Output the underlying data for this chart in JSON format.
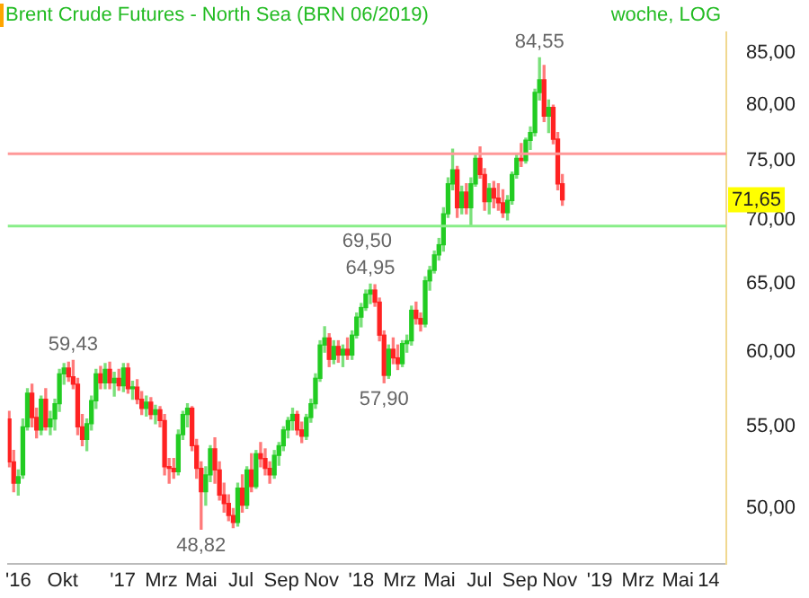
{
  "chart_data": {
    "type": "candlestick",
    "title": "Brent Crude Futures - North Sea (BRN 06/2019)",
    "subtitle": "woche, LOG",
    "log": true,
    "ylim": [
      46.9,
      87.1
    ],
    "yticks": [
      {
        "value": 50,
        "label": "50,00"
      },
      {
        "value": 55,
        "label": "55,00"
      },
      {
        "value": 60,
        "label": "60,00"
      },
      {
        "value": 65,
        "label": "65,00"
      },
      {
        "value": 70,
        "label": "70,00"
      },
      {
        "value": 75,
        "label": "75,00"
      },
      {
        "value": 80,
        "label": "80,00"
      },
      {
        "value": 85,
        "label": "85,00"
      }
    ],
    "xlim": [
      "2016-07-09",
      "2019-07-14"
    ],
    "xticks": [
      {
        "value": "2016-07-25",
        "label": "'16"
      },
      {
        "value": "2016-10-01",
        "label": "Okt"
      },
      {
        "value": "2017-01-01",
        "label": "'17"
      },
      {
        "value": "2017-03-01",
        "label": "Mrz"
      },
      {
        "value": "2017-05-01",
        "label": "Mai"
      },
      {
        "value": "2017-07-01",
        "label": "Jul"
      },
      {
        "value": "2017-09-01",
        "label": "Sep"
      },
      {
        "value": "2017-11-01",
        "label": "Nov"
      },
      {
        "value": "2018-01-01",
        "label": "'18"
      },
      {
        "value": "2018-03-01",
        "label": "Mrz"
      },
      {
        "value": "2018-05-01",
        "label": "Mai"
      },
      {
        "value": "2018-07-01",
        "label": "Jul"
      },
      {
        "value": "2018-09-01",
        "label": "Sep"
      },
      {
        "value": "2018-11-01",
        "label": "Nov"
      },
      {
        "value": "2019-01-01",
        "label": "'19"
      },
      {
        "value": "2019-03-01",
        "label": "Mrz"
      },
      {
        "value": "2019-05-01",
        "label": "Mai"
      },
      {
        "value": "2019-06-17",
        "label": "14"
      }
    ],
    "colors": [
      "#ff2222",
      "#ff2222",
      "#22cc22",
      "#22cc22",
      "#22cc22",
      "#ff2222",
      "#ff2222",
      "#22cc22",
      "#ff2222",
      "#22cc22",
      "#22cc22",
      "#22cc22",
      "#22cc22",
      "#ff2222",
      "#ff2222",
      "#ff2222",
      "#ff2222",
      "#22cc22",
      "#22cc22",
      "#22cc22",
      "#ff2222",
      "#22cc22",
      "#ff2222",
      "#22cc22",
      "#ff2222",
      "#22cc22",
      "#ff2222",
      "#22cc22",
      "#ff2222",
      "#ff2222",
      "#22cc22",
      "#ff2222",
      "#22cc22",
      "#ff2222",
      "#ff2222",
      "#ff2222",
      "#ff2222",
      "#22cc22",
      "#22cc22",
      "#22cc22",
      "#ff2222",
      "#ff2222",
      "#ff2222",
      "#22cc22",
      "#22cc22",
      "#ff2222",
      "#ff2222",
      "#ff2222",
      "#ff2222",
      "#ff2222",
      "#22cc22",
      "#ff2222",
      "#22cc22",
      "#ff2222",
      "#22cc22",
      "#ff2222",
      "#ff2222",
      "#ff2222",
      "#22cc22",
      "#22cc22",
      "#22cc22",
      "#22cc22",
      "#22cc22",
      "#ff2222",
      "#ff2222",
      "#22cc22",
      "#22cc22",
      "#22cc22",
      "#22cc22",
      "#22cc22",
      "#ff2222",
      "#22cc22",
      "#ff2222",
      "#22cc22",
      "#ff2222",
      "#22cc22",
      "#22cc22",
      "#22cc22",
      "#22cc22",
      "#22cc22",
      "#ff2222",
      "#ff2222",
      "#ff2222",
      "#22cc22",
      "#ff2222",
      "#ff2222",
      "#22cc22",
      "#22cc22",
      "#22cc22",
      "#ff2222",
      "#ff2222",
      "#22cc22",
      "#22cc22",
      "#22cc22",
      "#22cc22",
      "#22cc22",
      "#22cc22",
      "#22cc22",
      "#ff2222",
      "#22cc22",
      "#ff2222",
      "#22cc22",
      "#22cc22",
      "#ff2222",
      "#ff2222",
      "#22cc22",
      "#ff2222",
      "#ff2222",
      "#ff2222",
      "#22cc22",
      "#22cc22",
      "#22cc22",
      "#ff2222",
      "#22cc22",
      "#22cc22",
      "#22cc22",
      "#22cc22",
      "#ff2222",
      "#22cc22",
      "#ff2222",
      "#ff2222",
      "#ff2222"
    ],
    "x": [
      "2016-07-11",
      "2016-07-18",
      "2016-07-25",
      "2016-08-01",
      "2016-08-08",
      "2016-08-15",
      "2016-08-22",
      "2016-08-29",
      "2016-09-05",
      "2016-09-12",
      "2016-09-19",
      "2016-09-26",
      "2016-10-03",
      "2016-10-10",
      "2016-10-17",
      "2016-10-24",
      "2016-10-31",
      "2016-11-07",
      "2016-11-14",
      "2016-11-21",
      "2016-11-28",
      "2016-12-05",
      "2016-12-12",
      "2016-12-19",
      "2016-12-26",
      "2017-01-02",
      "2017-01-09",
      "2017-01-16",
      "2017-01-23",
      "2017-01-30",
      "2017-02-06",
      "2017-02-13",
      "2017-02-20",
      "2017-02-27",
      "2017-03-06",
      "2017-03-13",
      "2017-03-20",
      "2017-03-27",
      "2017-04-03",
      "2017-04-10",
      "2017-04-17",
      "2017-04-24",
      "2017-05-01",
      "2017-05-08",
      "2017-05-15",
      "2017-05-22",
      "2017-05-29",
      "2017-06-05",
      "2017-06-12",
      "2017-06-19",
      "2017-06-26",
      "2017-07-03",
      "2017-07-10",
      "2017-07-17",
      "2017-07-24",
      "2017-07-31",
      "2017-08-07",
      "2017-08-14",
      "2017-08-21",
      "2017-08-28",
      "2017-09-04",
      "2017-09-11",
      "2017-09-18",
      "2017-09-25",
      "2017-10-02",
      "2017-10-09",
      "2017-10-16",
      "2017-10-23",
      "2017-10-30",
      "2017-11-06",
      "2017-11-13",
      "2017-11-20",
      "2017-11-27",
      "2017-12-04",
      "2017-12-11",
      "2017-12-18",
      "2017-12-25",
      "2018-01-01",
      "2018-01-08",
      "2018-01-15",
      "2018-01-22",
      "2018-01-29",
      "2018-02-05",
      "2018-02-12",
      "2018-02-19",
      "2018-02-26",
      "2018-03-05",
      "2018-03-12",
      "2018-03-19",
      "2018-03-26",
      "2018-04-02",
      "2018-04-09",
      "2018-04-16",
      "2018-04-23",
      "2018-04-30",
      "2018-05-07",
      "2018-05-14",
      "2018-05-21",
      "2018-05-28",
      "2018-06-04",
      "2018-06-11",
      "2018-06-18",
      "2018-06-25",
      "2018-07-02",
      "2018-07-09",
      "2018-07-16",
      "2018-07-23",
      "2018-07-30",
      "2018-08-06",
      "2018-08-13",
      "2018-08-20",
      "2018-08-27",
      "2018-09-03",
      "2018-09-10",
      "2018-09-17",
      "2018-09-24",
      "2018-10-01",
      "2018-10-08",
      "2018-10-15",
      "2018-10-22",
      "2018-10-29",
      "2018-11-05"
    ],
    "ohlc": [
      [
        55.5,
        56.0,
        52.5,
        52.8
      ],
      [
        52.8,
        53.5,
        51.0,
        51.5
      ],
      [
        51.5,
        52.3,
        50.8,
        51.9
      ],
      [
        52.0,
        55.5,
        51.8,
        55.0
      ],
      [
        55.0,
        57.5,
        54.8,
        57.2
      ],
      [
        57.2,
        57.8,
        55.0,
        55.6
      ],
      [
        55.6,
        56.2,
        54.3,
        54.8
      ],
      [
        54.8,
        57.0,
        54.5,
        56.8
      ],
      [
        56.8,
        57.5,
        54.8,
        55.0
      ],
      [
        55.0,
        56.0,
        54.5,
        55.5
      ],
      [
        55.5,
        56.8,
        54.8,
        56.5
      ],
      [
        56.5,
        58.8,
        56.0,
        58.5
      ],
      [
        58.5,
        59.2,
        57.8,
        58.9
      ],
      [
        58.9,
        59.3,
        58.0,
        58.3
      ],
      [
        58.3,
        59.43,
        57.5,
        57.8
      ],
      [
        57.8,
        58.2,
        54.5,
        55.0
      ],
      [
        55.0,
        55.8,
        53.8,
        54.2
      ],
      [
        54.2,
        55.5,
        53.5,
        55.2
      ],
      [
        55.2,
        57.0,
        54.8,
        56.7
      ],
      [
        56.7,
        58.8,
        56.2,
        58.5
      ],
      [
        58.5,
        59.0,
        57.5,
        57.9
      ],
      [
        57.9,
        59.2,
        57.5,
        58.8
      ],
      [
        58.8,
        59.3,
        57.5,
        57.9
      ],
      [
        57.9,
        58.6,
        57.0,
        58.2
      ],
      [
        58.2,
        58.8,
        57.4,
        57.7
      ],
      [
        57.7,
        59.2,
        57.3,
        58.9
      ],
      [
        58.9,
        59.2,
        57.2,
        57.5
      ],
      [
        57.5,
        58.0,
        56.8,
        57.6
      ],
      [
        57.6,
        58.1,
        56.5,
        56.8
      ],
      [
        56.8,
        57.3,
        55.8,
        56.2
      ],
      [
        56.2,
        57.0,
        55.7,
        56.6
      ],
      [
        56.6,
        56.9,
        55.5,
        55.8
      ],
      [
        55.8,
        56.4,
        55.2,
        56.1
      ],
      [
        56.1,
        56.3,
        55.0,
        55.4
      ],
      [
        55.4,
        55.8,
        52.0,
        52.5
      ],
      [
        52.5,
        53.0,
        51.5,
        52.4
      ],
      [
        52.4,
        53.0,
        51.8,
        52.2
      ],
      [
        52.2,
        54.8,
        52.0,
        54.5
      ],
      [
        54.5,
        56.0,
        54.2,
        55.8
      ],
      [
        55.8,
        56.5,
        55.0,
        56.2
      ],
      [
        56.2,
        56.3,
        53.5,
        53.8
      ],
      [
        53.8,
        54.2,
        51.8,
        52.4
      ],
      [
        52.4,
        52.8,
        48.82,
        51.0
      ],
      [
        51.0,
        52.5,
        50.2,
        52.0
      ],
      [
        52.0,
        53.8,
        51.6,
        53.6
      ],
      [
        53.6,
        54.3,
        51.5,
        52.3
      ],
      [
        52.3,
        52.8,
        50.5,
        50.8
      ],
      [
        50.8,
        51.5,
        49.8,
        50.3
      ],
      [
        50.3,
        50.8,
        49.3,
        49.6
      ],
      [
        49.6,
        50.0,
        48.9,
        49.2
      ],
      [
        49.2,
        51.5,
        49.0,
        51.2
      ],
      [
        51.2,
        52.0,
        49.8,
        50.2
      ],
      [
        50.2,
        52.5,
        50.0,
        52.3
      ],
      [
        52.3,
        53.3,
        51.0,
        51.3
      ],
      [
        51.3,
        53.5,
        51.2,
        53.3
      ],
      [
        53.3,
        54.0,
        52.5,
        53.0
      ],
      [
        53.0,
        53.6,
        52.0,
        52.4
      ],
      [
        52.4,
        52.8,
        51.5,
        52.0
      ],
      [
        52.0,
        53.5,
        51.8,
        53.2
      ],
      [
        53.2,
        54.0,
        52.6,
        53.8
      ],
      [
        53.8,
        55.0,
        53.5,
        54.8
      ],
      [
        54.8,
        55.6,
        54.3,
        55.4
      ],
      [
        55.4,
        56.2,
        54.8,
        55.8
      ],
      [
        55.8,
        56.0,
        54.5,
        54.8
      ],
      [
        54.8,
        55.3,
        54.0,
        54.4
      ],
      [
        54.4,
        55.8,
        54.2,
        55.6
      ],
      [
        55.6,
        56.8,
        55.3,
        56.5
      ],
      [
        56.5,
        58.5,
        56.2,
        58.2
      ],
      [
        58.2,
        60.8,
        58.0,
        60.5
      ],
      [
        60.5,
        61.8,
        60.0,
        61.0
      ],
      [
        61.0,
        61.3,
        59.0,
        59.5
      ],
      [
        59.5,
        60.8,
        59.2,
        60.4
      ],
      [
        60.4,
        60.8,
        59.3,
        59.8
      ],
      [
        59.8,
        60.5,
        59.0,
        60.2
      ],
      [
        60.2,
        61.0,
        59.5,
        59.8
      ],
      [
        59.8,
        61.5,
        59.5,
        61.2
      ],
      [
        61.2,
        62.8,
        61.0,
        62.5
      ],
      [
        62.5,
        63.5,
        61.8,
        63.2
      ],
      [
        63.2,
        64.5,
        63.0,
        64.2
      ],
      [
        64.2,
        64.95,
        63.5,
        64.5
      ],
      [
        64.5,
        64.9,
        63.3,
        63.6
      ],
      [
        63.6,
        63.9,
        60.8,
        61.2
      ],
      [
        61.2,
        61.5,
        57.9,
        58.4
      ],
      [
        58.4,
        60.5,
        58.2,
        60.2
      ],
      [
        60.2,
        61.0,
        59.2,
        59.6
      ],
      [
        59.6,
        60.5,
        58.8,
        59.2
      ],
      [
        59.2,
        60.8,
        59.0,
        60.6
      ],
      [
        60.6,
        61.2,
        60.0,
        60.8
      ],
      [
        60.8,
        63.3,
        60.5,
        63.0
      ],
      [
        63.0,
        63.6,
        62.0,
        62.4
      ],
      [
        62.4,
        62.8,
        61.5,
        62.0
      ],
      [
        62.0,
        65.5,
        61.8,
        65.2
      ],
      [
        65.2,
        66.3,
        64.5,
        66.0
      ],
      [
        66.0,
        67.5,
        65.8,
        67.2
      ],
      [
        67.2,
        68.5,
        66.8,
        68.0
      ],
      [
        68.0,
        71.0,
        67.5,
        70.5
      ],
      [
        70.5,
        73.5,
        70.2,
        73.0
      ],
      [
        73.0,
        76.0,
        72.5,
        74.2
      ],
      [
        74.2,
        74.5,
        70.2,
        71.0
      ],
      [
        71.0,
        72.8,
        70.5,
        72.3
      ],
      [
        72.3,
        73.0,
        70.5,
        71.0
      ],
      [
        71.0,
        73.5,
        69.5,
        73.0
      ],
      [
        73.0,
        75.5,
        72.8,
        75.2
      ],
      [
        75.2,
        76.2,
        73.5,
        73.8
      ],
      [
        73.8,
        74.3,
        70.8,
        71.5
      ],
      [
        71.5,
        73.0,
        70.5,
        72.6
      ],
      [
        72.6,
        73.2,
        71.0,
        71.8
      ],
      [
        71.8,
        73.0,
        70.8,
        71.4
      ],
      [
        71.4,
        72.5,
        70.2,
        70.6
      ],
      [
        70.6,
        72.0,
        70.0,
        71.6
      ],
      [
        71.6,
        74.0,
        71.3,
        73.8
      ],
      [
        73.8,
        75.5,
        73.5,
        75.2
      ],
      [
        75.2,
        76.5,
        74.5,
        75.0
      ],
      [
        75.0,
        77.0,
        74.8,
        76.8
      ],
      [
        76.8,
        78.0,
        76.0,
        77.5
      ],
      [
        77.5,
        81.5,
        77.2,
        81.2
      ],
      [
        81.2,
        84.55,
        80.5,
        82.4
      ],
      [
        82.4,
        83.8,
        78.5,
        79.0
      ],
      [
        79.0,
        80.5,
        77.5,
        79.8
      ],
      [
        79.8,
        80.0,
        76.5,
        76.9
      ],
      [
        76.9,
        77.5,
        72.5,
        73.0
      ],
      [
        73.0,
        73.8,
        71.2,
        71.65
      ]
    ],
    "ref_lines": [
      {
        "axis": "y",
        "value": 69.5,
        "label": "69,50",
        "color": "#88ee88"
      },
      {
        "axis": "y",
        "value": 75.6,
        "color": "#ff9999"
      }
    ],
    "annotations": [
      {
        "text": "59,43",
        "x": "2016-10-17",
        "y": 59.43
      },
      {
        "text": "48,82",
        "x": "2017-05-01",
        "y": 48.82
      },
      {
        "text": "64,95",
        "x": "2018-01-15",
        "y": 64.95
      },
      {
        "text": "57,90",
        "x": "2018-02-05",
        "y": 57.9
      },
      {
        "text": "84,55",
        "x": "2018-10-01",
        "y": 84.55
      },
      {
        "text": "71,65",
        "y": 71.65
      }
    ]
  }
}
